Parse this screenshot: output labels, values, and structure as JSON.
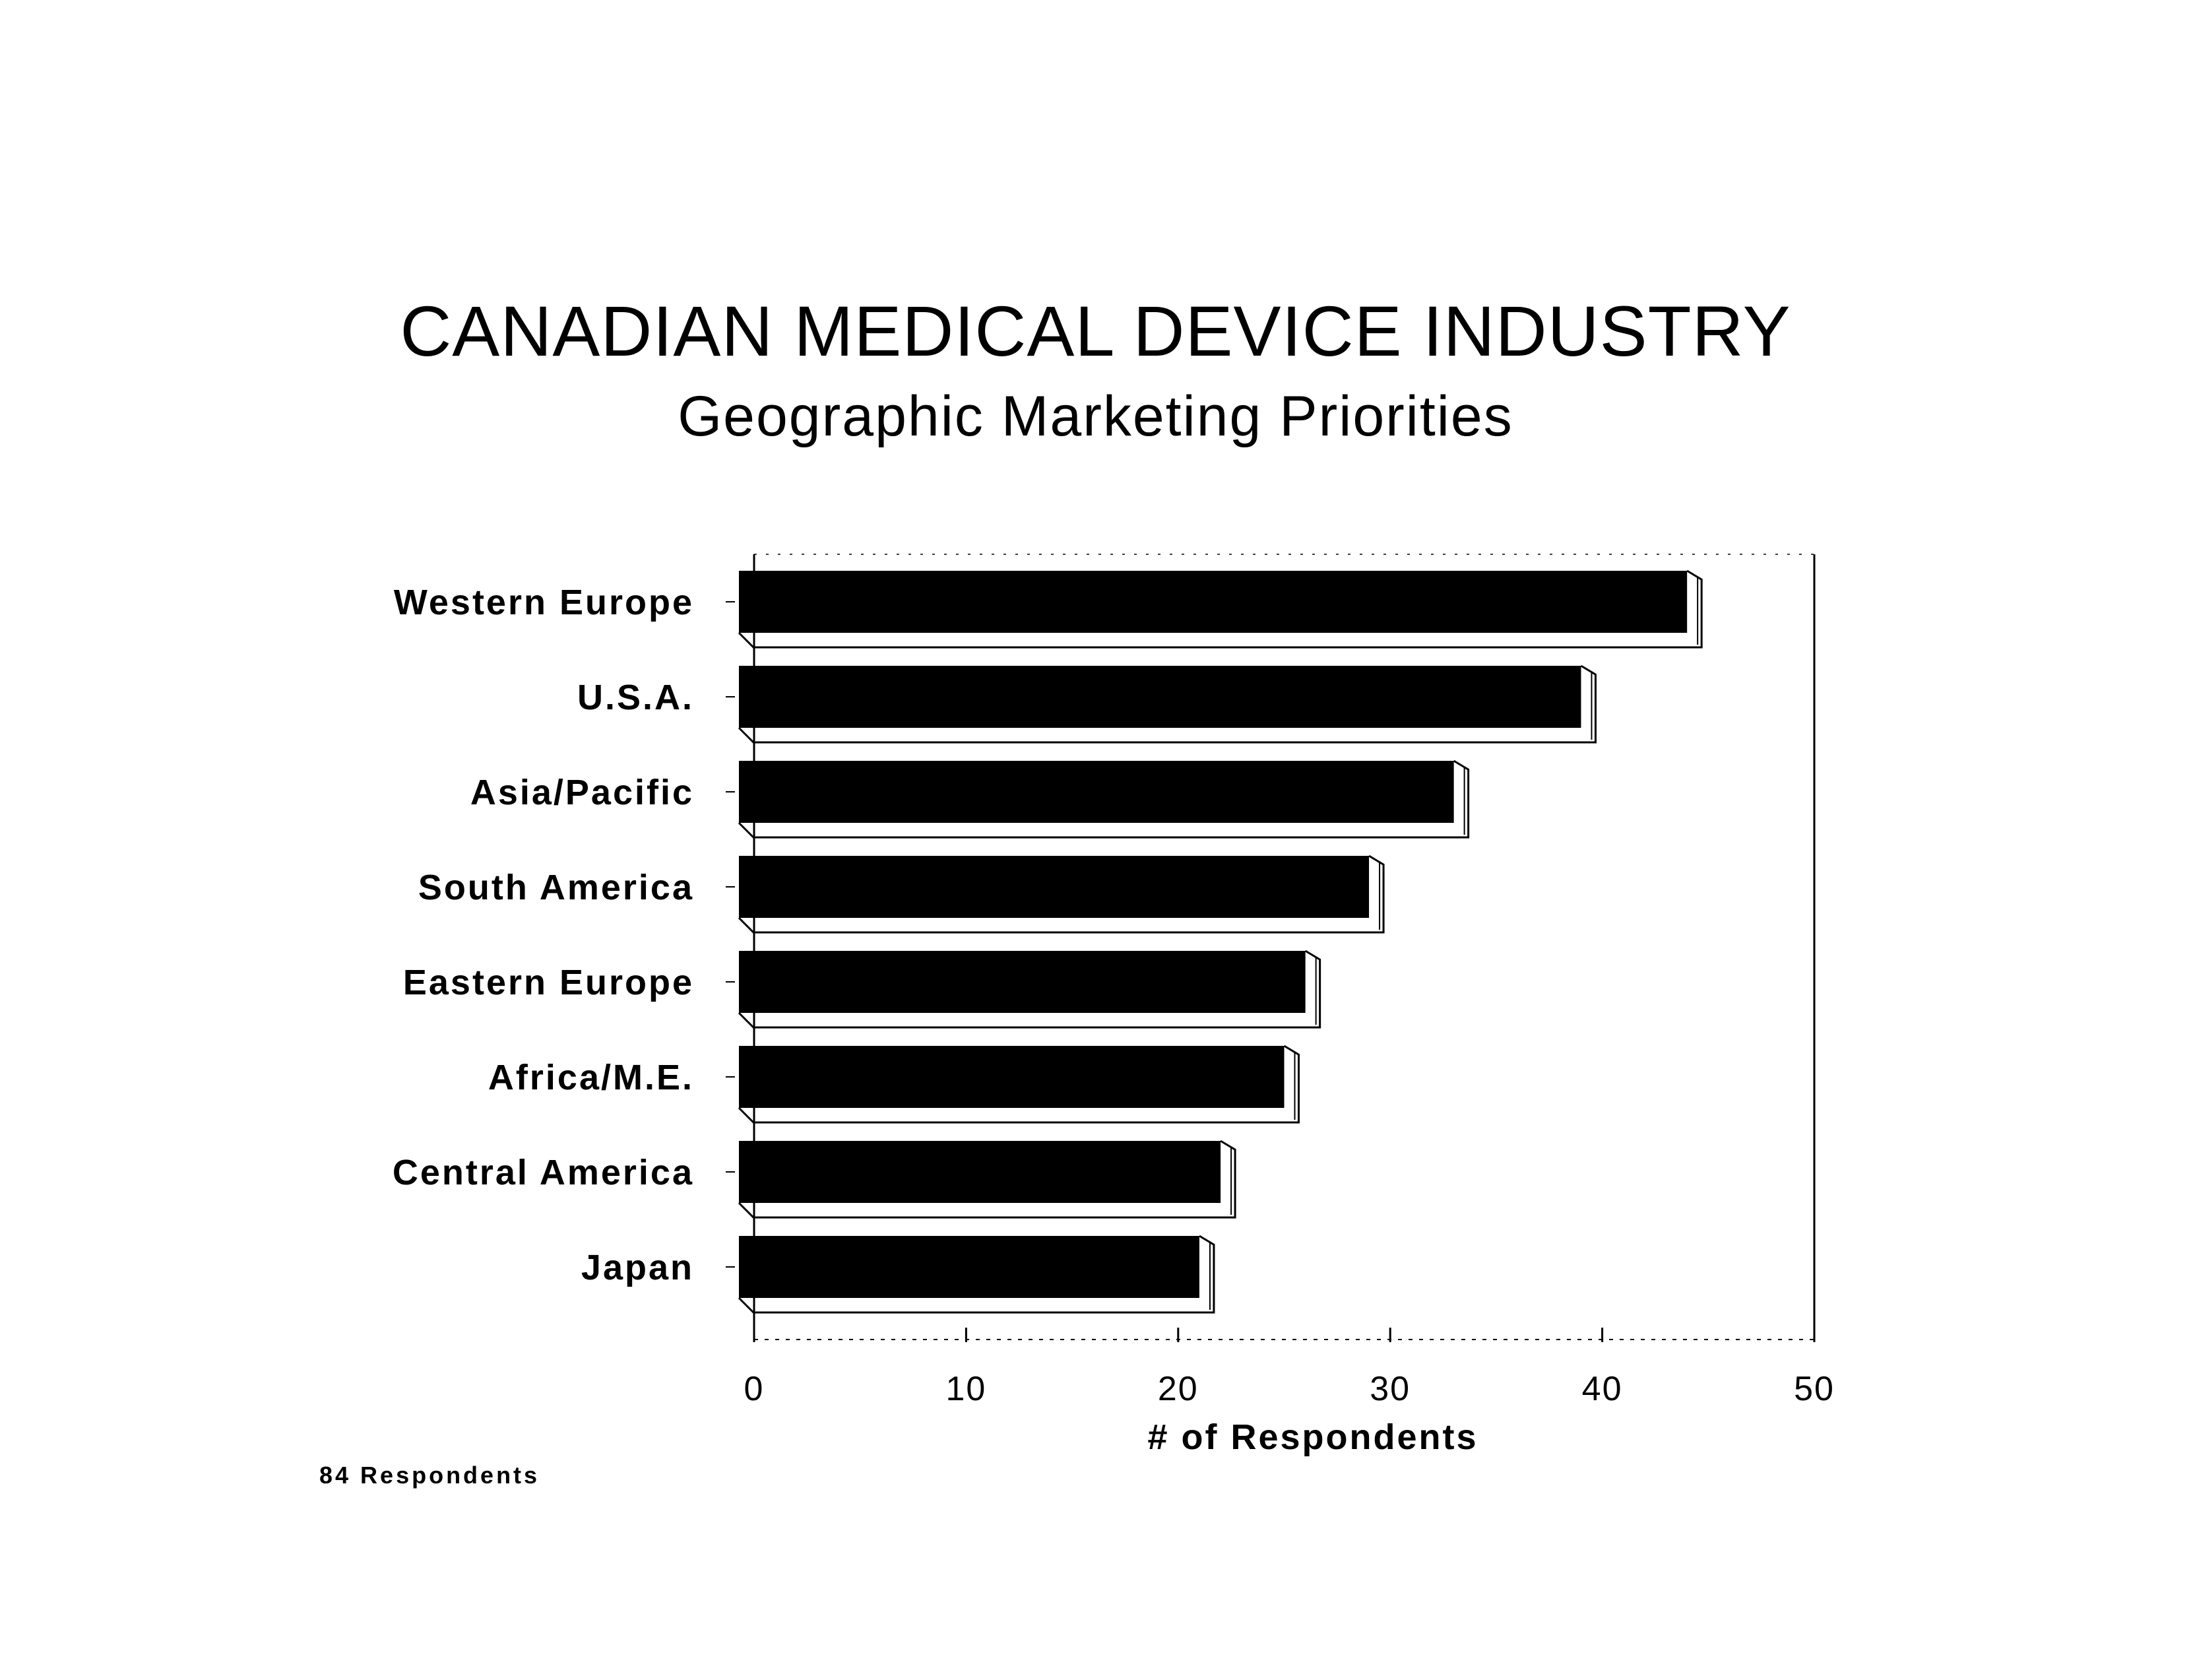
{
  "chart_data": {
    "type": "bar",
    "orientation": "horizontal",
    "title": "CANADIAN MEDICAL DEVICE INDUSTRY",
    "subtitle": "Geographic Marketing Priorities",
    "categories": [
      "Western Europe",
      "U.S.A.",
      "Asia/Pacific",
      "South America",
      "Eastern Europe",
      "Africa/M.E.",
      "Central America",
      "Japan"
    ],
    "values": [
      44,
      39,
      33,
      29,
      26,
      25,
      22,
      21
    ],
    "xlabel": "# of Respondents",
    "ylabel": "",
    "xlim": [
      0,
      50
    ],
    "xticks": [
      "0",
      "10",
      "20",
      "30",
      "40",
      "50"
    ],
    "bar_color": "#000000",
    "grid": false,
    "legend": "none",
    "note": "84 Respondents"
  }
}
